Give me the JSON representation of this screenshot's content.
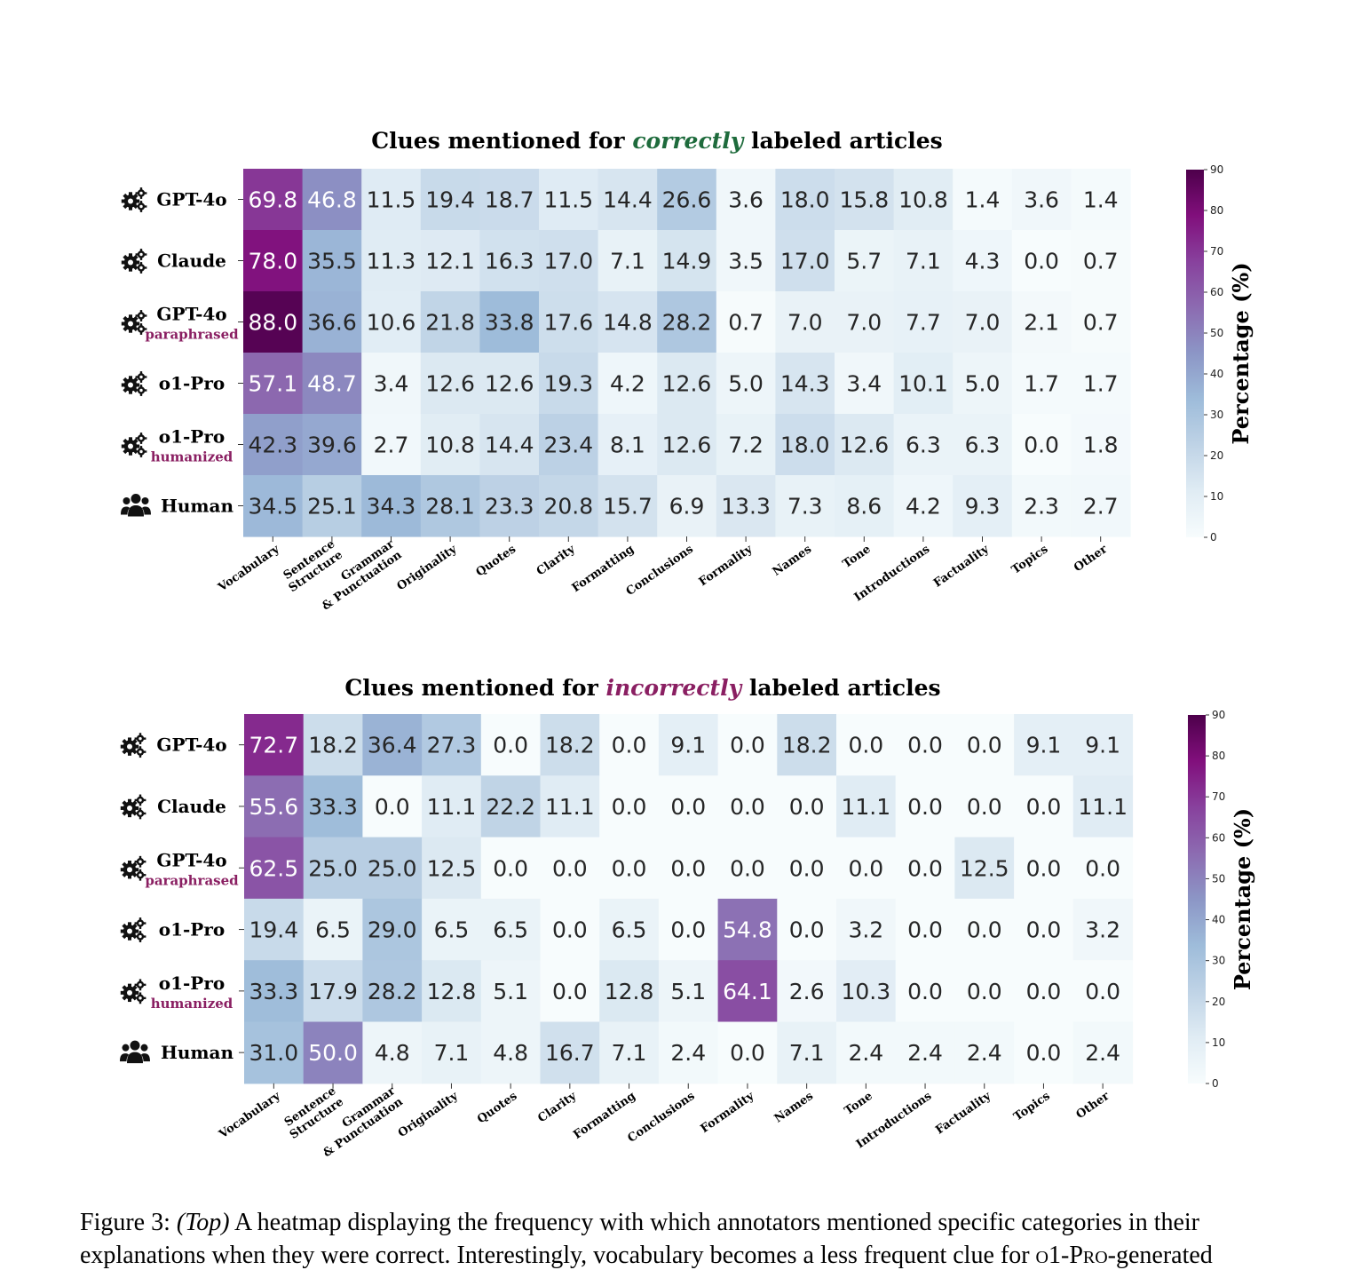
{
  "chart_data": [
    {
      "type": "heatmap",
      "title": {
        "before": "Clues mentioned for ",
        "emphasis": "correctly",
        "after": " labeled articles",
        "emphasis_color": "#1e6b3c"
      },
      "rows": [
        {
          "name": "GPT-4o",
          "sub": "",
          "icon": "gears-icon"
        },
        {
          "name": "Claude",
          "sub": "",
          "icon": "gears-icon"
        },
        {
          "name": "GPT-4o",
          "sub": "paraphrased",
          "icon": "gears-icon"
        },
        {
          "name": "o1-Pro",
          "sub": "",
          "icon": "gears-icon"
        },
        {
          "name": "o1-Pro",
          "sub": "humanized",
          "icon": "gears-icon"
        },
        {
          "name": "Human",
          "sub": "",
          "icon": "people-icon"
        }
      ],
      "columns": [
        "Vocabulary",
        "Sentence\nStructure",
        "Grammar\n& Punctuation",
        "Originality",
        "Quotes",
        "Clarity",
        "Formatting",
        "Conclusions",
        "Formality",
        "Names",
        "Tone",
        "Introductions",
        "Factuality",
        "Topics",
        "Other"
      ],
      "values": [
        [
          69.8,
          46.8,
          11.5,
          19.4,
          18.7,
          11.5,
          14.4,
          26.6,
          3.6,
          18.0,
          15.8,
          10.8,
          1.4,
          3.6,
          1.4
        ],
        [
          78.0,
          35.5,
          11.3,
          12.1,
          16.3,
          17.0,
          7.1,
          14.9,
          3.5,
          17.0,
          5.7,
          7.1,
          4.3,
          0.0,
          0.7
        ],
        [
          88.0,
          36.6,
          10.6,
          21.8,
          33.8,
          17.6,
          14.8,
          28.2,
          0.7,
          7.0,
          7.0,
          7.7,
          7.0,
          2.1,
          0.7
        ],
        [
          57.1,
          48.7,
          3.4,
          12.6,
          12.6,
          19.3,
          4.2,
          12.6,
          5.0,
          14.3,
          3.4,
          10.1,
          5.0,
          1.7,
          1.7
        ],
        [
          42.3,
          39.6,
          2.7,
          10.8,
          14.4,
          23.4,
          8.1,
          12.6,
          7.2,
          18.0,
          12.6,
          6.3,
          6.3,
          0.0,
          1.8
        ],
        [
          34.5,
          25.1,
          34.3,
          28.1,
          23.3,
          20.8,
          15.7,
          6.9,
          13.3,
          7.3,
          8.6,
          4.2,
          9.3,
          2.3,
          2.7
        ]
      ],
      "colorbar": {
        "label": "Percentage (%)",
        "min": 0,
        "max": 90,
        "ticks": [
          0,
          10,
          20,
          30,
          40,
          50,
          60,
          70,
          80,
          90
        ],
        "colormap": "BuPu"
      }
    },
    {
      "type": "heatmap",
      "title": {
        "before": "Clues mentioned for ",
        "emphasis": "incorrectly",
        "after": " labeled articles",
        "emphasis_color": "#8a1f62"
      },
      "rows": [
        {
          "name": "GPT-4o",
          "sub": "",
          "icon": "gears-icon"
        },
        {
          "name": "Claude",
          "sub": "",
          "icon": "gears-icon"
        },
        {
          "name": "GPT-4o",
          "sub": "paraphrased",
          "icon": "gears-icon"
        },
        {
          "name": "o1-Pro",
          "sub": "",
          "icon": "gears-icon"
        },
        {
          "name": "o1-Pro",
          "sub": "humanized",
          "icon": "gears-icon"
        },
        {
          "name": "Human",
          "sub": "",
          "icon": "people-icon"
        }
      ],
      "columns": [
        "Vocabulary",
        "Sentence\nStructure",
        "Grammar\n& Punctuation",
        "Originality",
        "Quotes",
        "Clarity",
        "Formatting",
        "Conclusions",
        "Formality",
        "Names",
        "Tone",
        "Introductions",
        "Factuality",
        "Topics",
        "Other"
      ],
      "values": [
        [
          72.7,
          18.2,
          36.4,
          27.3,
          0.0,
          18.2,
          0.0,
          9.1,
          0.0,
          18.2,
          0.0,
          0.0,
          0.0,
          9.1,
          9.1
        ],
        [
          55.6,
          33.3,
          0.0,
          11.1,
          22.2,
          11.1,
          0.0,
          0.0,
          0.0,
          0.0,
          11.1,
          0.0,
          0.0,
          0.0,
          11.1
        ],
        [
          62.5,
          25.0,
          25.0,
          12.5,
          0.0,
          0.0,
          0.0,
          0.0,
          0.0,
          0.0,
          0.0,
          0.0,
          12.5,
          0.0,
          0.0
        ],
        [
          19.4,
          6.5,
          29.0,
          6.5,
          6.5,
          0.0,
          6.5,
          0.0,
          54.8,
          0.0,
          3.2,
          0.0,
          0.0,
          0.0,
          3.2
        ],
        [
          33.3,
          17.9,
          28.2,
          12.8,
          5.1,
          0.0,
          12.8,
          5.1,
          64.1,
          2.6,
          10.3,
          0.0,
          0.0,
          0.0,
          0.0
        ],
        [
          31.0,
          50.0,
          4.8,
          7.1,
          4.8,
          16.7,
          7.1,
          2.4,
          0.0,
          7.1,
          2.4,
          2.4,
          2.4,
          0.0,
          2.4
        ]
      ],
      "colorbar": {
        "label": "Percentage (%)",
        "min": 0,
        "max": 90,
        "ticks": [
          0,
          10,
          20,
          30,
          40,
          50,
          60,
          70,
          80,
          90
        ],
        "colormap": "BuPu"
      }
    }
  ],
  "caption": {
    "label": "Figure 3:",
    "emph": "(Top)",
    "line1_rest": " A heatmap displaying the frequency with which annotators mentioned specific categories in their explanations when they were correct. Interestingly, vocabulary becomes a less frequent clue for ",
    "model_prefix": "o1-",
    "model_name": "Pro",
    "line2_rest": "-generated"
  }
}
